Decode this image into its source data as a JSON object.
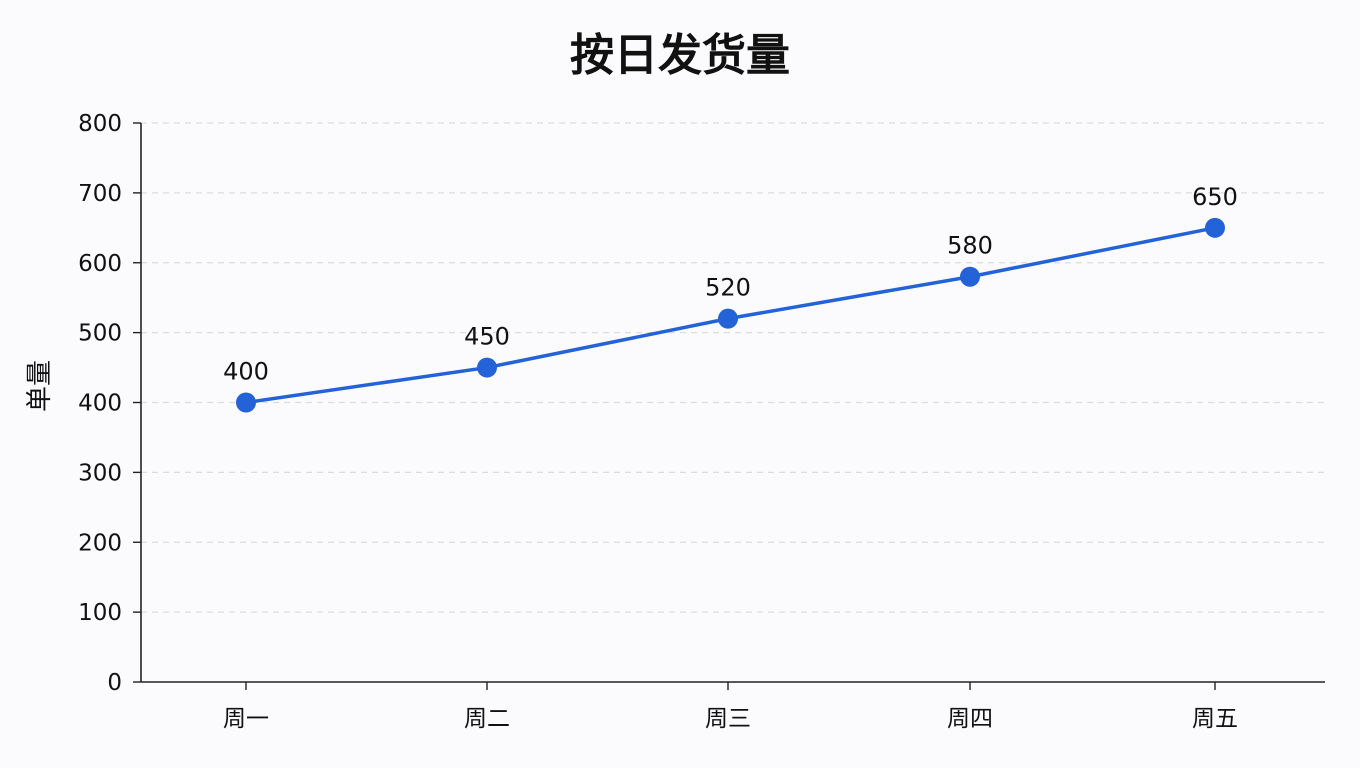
{
  "chart_data": {
    "type": "line",
    "title": "按日发货量",
    "xlabel": "",
    "ylabel": "单量",
    "categories": [
      "周一",
      "周二",
      "周三",
      "周四",
      "周五"
    ],
    "series": [
      {
        "values": [
          400,
          450,
          520,
          580,
          650
        ],
        "color": "#2462d8"
      }
    ],
    "ylim": [
      0,
      800
    ],
    "yticks": [
      0,
      100,
      200,
      300,
      400,
      500,
      600,
      700,
      800
    ],
    "grid": true,
    "data_labels": true
  }
}
